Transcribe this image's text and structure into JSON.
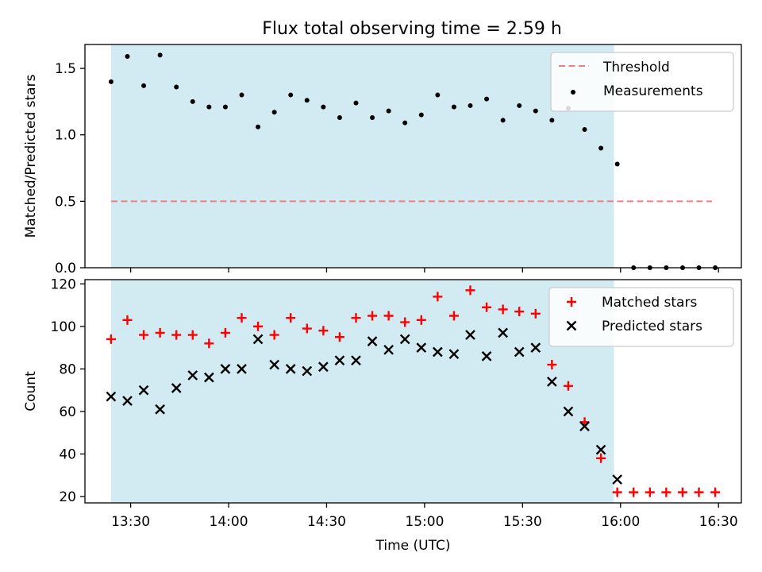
{
  "title": "Flux total observing time = 2.59 h",
  "chart_data": [
    {
      "type": "scatter",
      "panel": "top",
      "ylabel": "Matched/Predicted stars",
      "ylim": [
        0,
        1.68
      ],
      "yticks": [
        0.0,
        0.5,
        1.0,
        1.5
      ],
      "ytick_labels": [
        "0.0",
        "0.5",
        "1.0",
        "1.5"
      ],
      "xlim": [
        "13:16",
        "16:37"
      ],
      "xticks": [
        "13:30",
        "14:00",
        "14:30",
        "15:00",
        "15:30",
        "16:00",
        "16:30"
      ],
      "shaded_interval": {
        "start": "13:24",
        "end": "15:58",
        "color": "#add8e6"
      },
      "legend_position": "top-right",
      "series": [
        {
          "name": "Threshold",
          "style": "dashed-line",
          "color": "#f08080",
          "points": [
            {
              "x": "13:24",
              "y": 0.5
            },
            {
              "x": "16:28",
              "y": 0.5
            }
          ]
        },
        {
          "name": "Measurements",
          "style": "dot",
          "color": "#000000",
          "points": [
            {
              "x": "13:24",
              "y": 1.4
            },
            {
              "x": "13:29",
              "y": 1.59
            },
            {
              "x": "13:34",
              "y": 1.37
            },
            {
              "x": "13:39",
              "y": 1.6
            },
            {
              "x": "13:44",
              "y": 1.36
            },
            {
              "x": "13:49",
              "y": 1.25
            },
            {
              "x": "13:54",
              "y": 1.21
            },
            {
              "x": "13:59",
              "y": 1.21
            },
            {
              "x": "14:04",
              "y": 1.3
            },
            {
              "x": "14:09",
              "y": 1.06
            },
            {
              "x": "14:14",
              "y": 1.17
            },
            {
              "x": "14:19",
              "y": 1.3
            },
            {
              "x": "14:24",
              "y": 1.26
            },
            {
              "x": "14:29",
              "y": 1.21
            },
            {
              "x": "14:34",
              "y": 1.13
            },
            {
              "x": "14:39",
              "y": 1.24
            },
            {
              "x": "14:44",
              "y": 1.13
            },
            {
              "x": "14:49",
              "y": 1.18
            },
            {
              "x": "14:54",
              "y": 1.09
            },
            {
              "x": "14:59",
              "y": 1.15
            },
            {
              "x": "15:04",
              "y": 1.3
            },
            {
              "x": "15:09",
              "y": 1.21
            },
            {
              "x": "15:14",
              "y": 1.22
            },
            {
              "x": "15:19",
              "y": 1.27
            },
            {
              "x": "15:24",
              "y": 1.11
            },
            {
              "x": "15:29",
              "y": 1.22
            },
            {
              "x": "15:34",
              "y": 1.18
            },
            {
              "x": "15:39",
              "y": 1.11
            },
            {
              "x": "15:44",
              "y": 1.2
            },
            {
              "x": "15:49",
              "y": 1.04
            },
            {
              "x": "15:54",
              "y": 0.9
            },
            {
              "x": "15:59",
              "y": 0.78
            },
            {
              "x": "16:04",
              "y": 0.0
            },
            {
              "x": "16:09",
              "y": 0.0
            },
            {
              "x": "16:14",
              "y": 0.0
            },
            {
              "x": "16:19",
              "y": 0.0
            },
            {
              "x": "16:24",
              "y": 0.0
            },
            {
              "x": "16:29",
              "y": 0.0
            }
          ]
        }
      ]
    },
    {
      "type": "scatter",
      "panel": "bottom",
      "xlabel": "Time (UTC)",
      "ylabel": "Count",
      "ylim": [
        17,
        122
      ],
      "yticks": [
        20,
        40,
        60,
        80,
        100,
        120
      ],
      "ytick_labels": [
        "20",
        "40",
        "60",
        "80",
        "100",
        "120"
      ],
      "xlim": [
        "13:16",
        "16:37"
      ],
      "xticks": [
        "13:30",
        "14:00",
        "14:30",
        "15:00",
        "15:30",
        "16:00",
        "16:30"
      ],
      "xtick_labels": [
        "13:30",
        "14:00",
        "14:30",
        "15:00",
        "15:30",
        "16:00",
        "16:30"
      ],
      "shaded_interval": {
        "start": "13:24",
        "end": "15:58",
        "color": "#add8e6"
      },
      "legend_position": "top-right",
      "series": [
        {
          "name": "Matched stars",
          "style": "plus",
          "color": "#ff0000",
          "points": [
            {
              "x": "13:24",
              "y": 94
            },
            {
              "x": "13:29",
              "y": 103
            },
            {
              "x": "13:34",
              "y": 96
            },
            {
              "x": "13:39",
              "y": 97
            },
            {
              "x": "13:44",
              "y": 96
            },
            {
              "x": "13:49",
              "y": 96
            },
            {
              "x": "13:54",
              "y": 92
            },
            {
              "x": "13:59",
              "y": 97
            },
            {
              "x": "14:04",
              "y": 104
            },
            {
              "x": "14:09",
              "y": 100
            },
            {
              "x": "14:14",
              "y": 96
            },
            {
              "x": "14:19",
              "y": 104
            },
            {
              "x": "14:24",
              "y": 99
            },
            {
              "x": "14:29",
              "y": 98
            },
            {
              "x": "14:34",
              "y": 95
            },
            {
              "x": "14:39",
              "y": 104
            },
            {
              "x": "14:44",
              "y": 105
            },
            {
              "x": "14:49",
              "y": 105
            },
            {
              "x": "14:54",
              "y": 102
            },
            {
              "x": "14:59",
              "y": 103
            },
            {
              "x": "15:04",
              "y": 114
            },
            {
              "x": "15:09",
              "y": 105
            },
            {
              "x": "15:14",
              "y": 117
            },
            {
              "x": "15:19",
              "y": 109
            },
            {
              "x": "15:24",
              "y": 108
            },
            {
              "x": "15:29",
              "y": 107
            },
            {
              "x": "15:34",
              "y": 106
            },
            {
              "x": "15:39",
              "y": 82
            },
            {
              "x": "15:44",
              "y": 72
            },
            {
              "x": "15:49",
              "y": 55
            },
            {
              "x": "15:54",
              "y": 38
            },
            {
              "x": "15:59",
              "y": 22
            },
            {
              "x": "16:04",
              "y": 22
            },
            {
              "x": "16:09",
              "y": 22
            },
            {
              "x": "16:14",
              "y": 22
            },
            {
              "x": "16:19",
              "y": 22
            },
            {
              "x": "16:24",
              "y": 22
            },
            {
              "x": "16:29",
              "y": 22
            }
          ]
        },
        {
          "name": "Predicted stars",
          "style": "x",
          "color": "#000000",
          "points": [
            {
              "x": "13:24",
              "y": 67
            },
            {
              "x": "13:29",
              "y": 65
            },
            {
              "x": "13:34",
              "y": 70
            },
            {
              "x": "13:39",
              "y": 61
            },
            {
              "x": "13:44",
              "y": 71
            },
            {
              "x": "13:49",
              "y": 77
            },
            {
              "x": "13:54",
              "y": 76
            },
            {
              "x": "13:59",
              "y": 80
            },
            {
              "x": "14:04",
              "y": 80
            },
            {
              "x": "14:09",
              "y": 94
            },
            {
              "x": "14:14",
              "y": 82
            },
            {
              "x": "14:19",
              "y": 80
            },
            {
              "x": "14:24",
              "y": 79
            },
            {
              "x": "14:29",
              "y": 81
            },
            {
              "x": "14:34",
              "y": 84
            },
            {
              "x": "14:39",
              "y": 84
            },
            {
              "x": "14:44",
              "y": 93
            },
            {
              "x": "14:49",
              "y": 89
            },
            {
              "x": "14:54",
              "y": 94
            },
            {
              "x": "14:59",
              "y": 90
            },
            {
              "x": "15:04",
              "y": 88
            },
            {
              "x": "15:09",
              "y": 87
            },
            {
              "x": "15:14",
              "y": 96
            },
            {
              "x": "15:19",
              "y": 86
            },
            {
              "x": "15:24",
              "y": 97
            },
            {
              "x": "15:29",
              "y": 88
            },
            {
              "x": "15:34",
              "y": 90
            },
            {
              "x": "15:39",
              "y": 74
            },
            {
              "x": "15:44",
              "y": 60
            },
            {
              "x": "15:49",
              "y": 53
            },
            {
              "x": "15:54",
              "y": 42
            },
            {
              "x": "15:59",
              "y": 28
            }
          ]
        }
      ]
    }
  ]
}
